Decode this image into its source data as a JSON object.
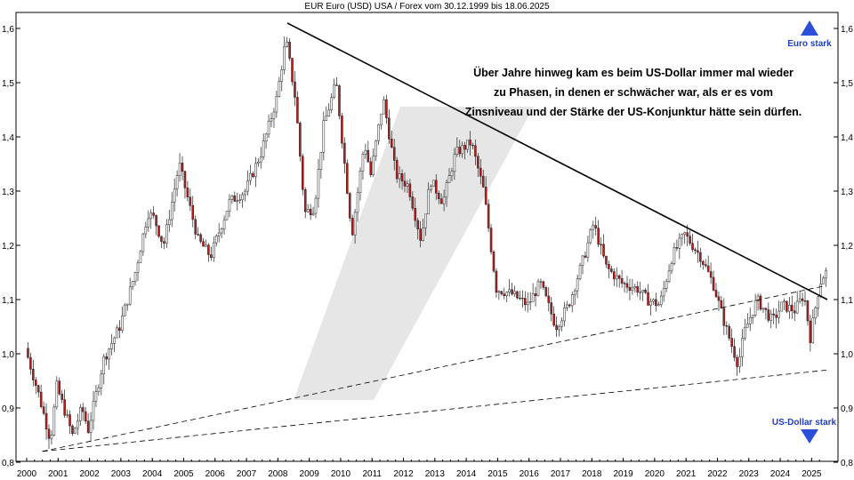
{
  "chart_data": {
    "type": "candlestick",
    "title": "EUR Euro (USD) USA / Forex vom 30.12.1999 bis 18.06.2025",
    "x_range": [
      2000.0,
      2025.5
    ],
    "ylim": [
      0.8,
      1.62
    ],
    "y_ticks": [
      "0,8",
      "0,9",
      "1,0",
      "1,1",
      "1,2",
      "1,3",
      "1,4",
      "1,5",
      "1,6"
    ],
    "y_tick_values": [
      0.8,
      0.9,
      1.0,
      1.1,
      1.2,
      1.3,
      1.4,
      1.5,
      1.6
    ],
    "x_tick_labels": [
      "2000",
      "2001",
      "2002",
      "2003",
      "2004",
      "2005",
      "2006",
      "2007",
      "2008",
      "2009",
      "2010",
      "2011",
      "2012",
      "2013",
      "2014",
      "2015",
      "2016",
      "2017",
      "2018",
      "2019",
      "2020",
      "2021",
      "2022",
      "2023",
      "2024",
      "2025"
    ],
    "grid": false,
    "price_path": [
      [
        2000.0,
        1.01
      ],
      [
        2000.4,
        0.93
      ],
      [
        2000.8,
        0.84
      ],
      [
        2001.0,
        0.94
      ],
      [
        2001.5,
        0.85
      ],
      [
        2001.8,
        0.9
      ],
      [
        2002.0,
        0.86
      ],
      [
        2002.5,
        0.99
      ],
      [
        2003.0,
        1.05
      ],
      [
        2003.5,
        1.15
      ],
      [
        2003.9,
        1.26
      ],
      [
        2004.1,
        1.25
      ],
      [
        2004.4,
        1.2
      ],
      [
        2004.9,
        1.35
      ],
      [
        2005.5,
        1.21
      ],
      [
        2005.9,
        1.18
      ],
      [
        2006.5,
        1.28
      ],
      [
        2007.0,
        1.3
      ],
      [
        2007.5,
        1.37
      ],
      [
        2008.0,
        1.47
      ],
      [
        2008.3,
        1.58
      ],
      [
        2008.6,
        1.47
      ],
      [
        2008.9,
        1.26
      ],
      [
        2009.2,
        1.27
      ],
      [
        2009.5,
        1.42
      ],
      [
        2009.9,
        1.5
      ],
      [
        2010.4,
        1.22
      ],
      [
        2010.8,
        1.39
      ],
      [
        2011.0,
        1.33
      ],
      [
        2011.4,
        1.47
      ],
      [
        2011.8,
        1.33
      ],
      [
        2012.2,
        1.31
      ],
      [
        2012.6,
        1.21
      ],
      [
        2012.9,
        1.32
      ],
      [
        2013.3,
        1.28
      ],
      [
        2013.7,
        1.37
      ],
      [
        2014.2,
        1.39
      ],
      [
        2014.6,
        1.3
      ],
      [
        2015.0,
        1.12
      ],
      [
        2015.5,
        1.11
      ],
      [
        2016.0,
        1.09
      ],
      [
        2016.4,
        1.13
      ],
      [
        2016.9,
        1.05
      ],
      [
        2017.3,
        1.09
      ],
      [
        2017.8,
        1.18
      ],
      [
        2018.1,
        1.24
      ],
      [
        2018.5,
        1.16
      ],
      [
        2019.0,
        1.13
      ],
      [
        2019.5,
        1.12
      ],
      [
        2019.8,
        1.1
      ],
      [
        2020.2,
        1.09
      ],
      [
        2020.6,
        1.18
      ],
      [
        2021.0,
        1.22
      ],
      [
        2021.5,
        1.18
      ],
      [
        2021.9,
        1.13
      ],
      [
        2022.3,
        1.05
      ],
      [
        2022.7,
        0.98
      ],
      [
        2022.9,
        1.04
      ],
      [
        2023.3,
        1.1
      ],
      [
        2023.8,
        1.06
      ],
      [
        2024.1,
        1.09
      ],
      [
        2024.5,
        1.08
      ],
      [
        2024.8,
        1.11
      ],
      [
        2025.0,
        1.03
      ],
      [
        2025.3,
        1.13
      ],
      [
        2025.47,
        1.15
      ]
    ],
    "trendlines": [
      {
        "style": "solid",
        "from": [
          2008.3,
          1.61
        ],
        "to": [
          2025.5,
          1.1
        ]
      },
      {
        "style": "dashed",
        "from": [
          2000.5,
          0.82
        ],
        "to": [
          2025.4,
          1.125
        ]
      },
      {
        "style": "dashed",
        "from": [
          2000.5,
          0.82
        ],
        "to": [
          2025.5,
          0.97
        ]
      }
    ],
    "annotation": [
      "Über Jahre hinweg kam es beim US-Dollar immer mal wieder",
      "zu Phasen, in denen er schwächer war, als er es vom",
      "Zinsniveau und der Stärke der US-Konjunktur hätte sein dürfen."
    ],
    "markers": {
      "up_label": "Euro stark",
      "down_label": "US-Dollar stark",
      "color": "#2b4fd8"
    },
    "colors": {
      "down_candle": "#b81c1c",
      "up_candle": "#ffffff",
      "outline": "#222222",
      "watermark": "#e6e6e6"
    }
  }
}
